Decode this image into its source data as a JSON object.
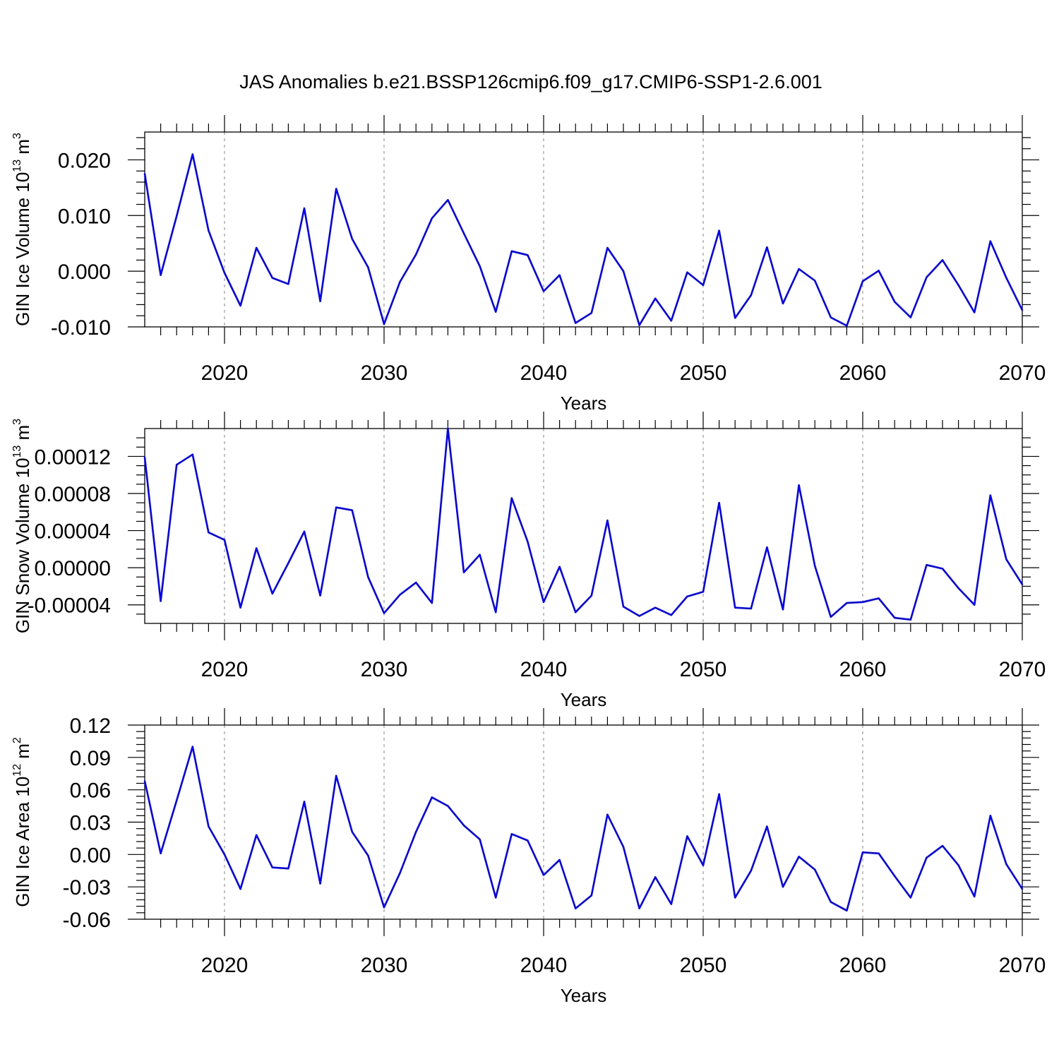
{
  "chart_data": [
    {
      "type": "line",
      "title": "JAS Anomalies b.e21.BSSP126cmip6.f09_g17.CMIP6-SSP1-2.6.001",
      "xlabel": "Years",
      "ylabel": "GIN Ice Volume 10",
      "ylabel_sup": "13",
      "ylabel_unit": "m",
      "ylabel_unit_sup": "3",
      "xlim": [
        2015,
        2070
      ],
      "ylim": [
        -0.01,
        0.025
      ],
      "xticks": [
        2020,
        2030,
        2040,
        2050,
        2060,
        2070
      ],
      "yticks": [
        -0.01,
        0.0,
        0.01,
        0.02
      ],
      "ytick_labels": [
        "-0.010",
        "0.000",
        "0.010",
        "0.020"
      ],
      "ytick_minor_step": 0.002,
      "grid": "dashed vertical at major x ticks",
      "color": "#0000ff",
      "x": [
        2015,
        2016,
        2017,
        2018,
        2019,
        2020,
        2021,
        2022,
        2023,
        2024,
        2025,
        2026,
        2027,
        2028,
        2029,
        2030,
        2031,
        2032,
        2033,
        2034,
        2035,
        2036,
        2037,
        2038,
        2039,
        2040,
        2041,
        2042,
        2043,
        2044,
        2045,
        2046,
        2047,
        2048,
        2049,
        2050,
        2051,
        2052,
        2053,
        2054,
        2055,
        2056,
        2057,
        2058,
        2059,
        2060,
        2061,
        2062,
        2063,
        2064,
        2065,
        2066,
        2067,
        2068,
        2069,
        2070
      ],
      "values": [
        0.0175,
        -0.0007,
        0.0099,
        0.021,
        0.0073,
        -0.0003,
        -0.0062,
        0.0042,
        -0.0012,
        -0.0023,
        0.0113,
        -0.0054,
        0.0148,
        0.0058,
        0.0007,
        -0.0095,
        -0.0019,
        0.003,
        0.0095,
        0.0128,
        0.0068,
        0.0009,
        -0.0073,
        0.0036,
        0.0029,
        -0.0036,
        -0.0007,
        -0.0093,
        -0.0075,
        0.0042,
        0.0,
        -0.0097,
        -0.0049,
        -0.0089,
        -0.0002,
        -0.0025,
        0.0073,
        -0.0084,
        -0.0043,
        0.0043,
        -0.0058,
        0.0004,
        -0.0017,
        -0.0083,
        -0.0098,
        -0.0018,
        0.0001,
        -0.0055,
        -0.0083,
        -0.0011,
        0.002,
        -0.0025,
        -0.0074,
        0.0054,
        -0.0012,
        -0.007
      ]
    },
    {
      "type": "line",
      "title": "",
      "xlabel": "Years",
      "ylabel": "GIN Snow Volume 10",
      "ylabel_sup": "13",
      "ylabel_unit": "m",
      "ylabel_unit_sup": "3",
      "xlim": [
        2015,
        2070
      ],
      "ylim": [
        -6e-05,
        0.00015
      ],
      "xticks": [
        2020,
        2030,
        2040,
        2050,
        2060,
        2070
      ],
      "yticks": [
        -4e-05,
        0.0,
        4e-05,
        8e-05,
        0.00012
      ],
      "ytick_labels": [
        "-0.00004",
        "0.00000",
        "0.00004",
        "0.00008",
        "0.00012"
      ],
      "ytick_minor_step": 1e-05,
      "grid": "dashed vertical at major x ticks",
      "color": "#0000ff",
      "x": [
        2015,
        2016,
        2017,
        2018,
        2019,
        2020,
        2021,
        2022,
        2023,
        2024,
        2025,
        2026,
        2027,
        2028,
        2029,
        2030,
        2031,
        2032,
        2033,
        2034,
        2035,
        2036,
        2037,
        2038,
        2039,
        2040,
        2041,
        2042,
        2043,
        2044,
        2045,
        2046,
        2047,
        2048,
        2049,
        2050,
        2051,
        2052,
        2053,
        2054,
        2055,
        2056,
        2057,
        2058,
        2059,
        2060,
        2061,
        2062,
        2063,
        2064,
        2065,
        2066,
        2067,
        2068,
        2069,
        2070
      ],
      "values": [
        0.000119,
        -3.6e-05,
        0.000111,
        0.000122,
        3.8e-05,
        3e-05,
        -4.3e-05,
        2.1e-05,
        -2.8e-05,
        5e-06,
        3.9e-05,
        -3e-05,
        6.5e-05,
        6.2e-05,
        -1e-05,
        -4.9e-05,
        -2.9e-05,
        -1.6e-05,
        -3.8e-05,
        0.00015,
        -5e-06,
        1.4e-05,
        -4.8e-05,
        7.5e-05,
        2.8e-05,
        -3.7e-05,
        1e-06,
        -4.8e-05,
        -3e-05,
        5.1e-05,
        -4.2e-05,
        -5.2e-05,
        -4.3e-05,
        -5.1e-05,
        -3.1e-05,
        -2.6e-05,
        7e-05,
        -4.3e-05,
        -4.4e-05,
        2.2e-05,
        -4.5e-05,
        8.9e-05,
        2e-06,
        -5.3e-05,
        -3.8e-05,
        -3.7e-05,
        -3.3e-05,
        -5.4e-05,
        -5.6e-05,
        3e-06,
        -1e-06,
        -2.2e-05,
        -4e-05,
        7.8e-05,
        9e-06,
        -1.8e-05
      ]
    },
    {
      "type": "line",
      "title": "",
      "xlabel": "Years",
      "ylabel": "GIN Ice Area 10",
      "ylabel_sup": "12",
      "ylabel_unit": "m",
      "ylabel_unit_sup": "2",
      "xlim": [
        2015,
        2070
      ],
      "ylim": [
        -0.06,
        0.12
      ],
      "xticks": [
        2020,
        2030,
        2040,
        2050,
        2060,
        2070
      ],
      "yticks": [
        -0.06,
        -0.03,
        0.0,
        0.03,
        0.06,
        0.09,
        0.12
      ],
      "ytick_labels": [
        "-0.06",
        "-0.03",
        "0.00",
        "0.03",
        "0.06",
        "0.09",
        "0.12"
      ],
      "ytick_minor_step": 0.006,
      "grid": "dashed vertical at major x ticks",
      "color": "#0000ff",
      "x": [
        2015,
        2016,
        2017,
        2018,
        2019,
        2020,
        2021,
        2022,
        2023,
        2024,
        2025,
        2026,
        2027,
        2028,
        2029,
        2030,
        2031,
        2032,
        2033,
        2034,
        2035,
        2036,
        2037,
        2038,
        2039,
        2040,
        2041,
        2042,
        2043,
        2044,
        2045,
        2046,
        2047,
        2048,
        2049,
        2050,
        2051,
        2052,
        2053,
        2054,
        2055,
        2056,
        2057,
        2058,
        2059,
        2060,
        2061,
        2062,
        2063,
        2064,
        2065,
        2066,
        2067,
        2068,
        2069,
        2070
      ],
      "values": [
        0.068,
        0.001,
        0.05,
        0.1,
        0.026,
        0.0,
        -0.032,
        0.018,
        -0.012,
        -0.013,
        0.049,
        -0.027,
        0.073,
        0.021,
        -0.001,
        -0.049,
        -0.017,
        0.021,
        0.053,
        0.045,
        0.027,
        0.014,
        -0.04,
        0.019,
        0.013,
        -0.019,
        -0.005,
        -0.05,
        -0.038,
        0.037,
        0.007,
        -0.05,
        -0.021,
        -0.046,
        0.017,
        -0.01,
        0.056,
        -0.04,
        -0.015,
        0.026,
        -0.03,
        -0.002,
        -0.014,
        -0.044,
        -0.052,
        0.002,
        0.001,
        -0.02,
        -0.04,
        -0.003,
        0.008,
        -0.01,
        -0.039,
        0.036,
        -0.009,
        -0.032
      ]
    }
  ]
}
